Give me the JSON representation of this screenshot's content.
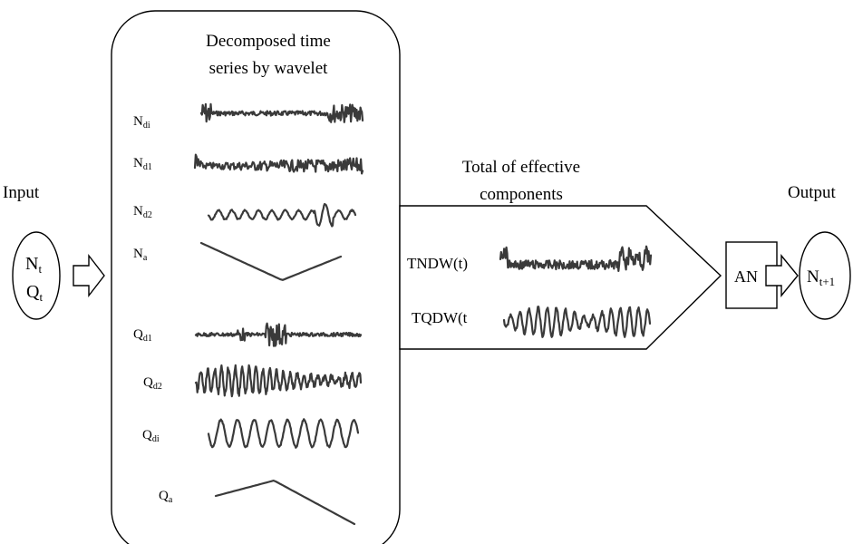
{
  "input": {
    "label": "Input",
    "n": "N",
    "n_sub": "t",
    "q": "Q",
    "q_sub": "t"
  },
  "decomposed": {
    "title_line1": "Decomposed time",
    "title_line2": "series by wavelet",
    "components": [
      {
        "base": "N",
        "sub": "di"
      },
      {
        "base": "N",
        "sub": "d1"
      },
      {
        "base": "N",
        "sub": "d2"
      },
      {
        "base": "N",
        "sub": "a"
      },
      {
        "base": "Q",
        "sub": "d1"
      },
      {
        "base": "Q",
        "sub": "d2"
      },
      {
        "base": "Q",
        "sub": "di"
      },
      {
        "base": "Q",
        "sub": "a"
      }
    ]
  },
  "effective": {
    "title_line1": "Total of effective",
    "title_line2": "components",
    "tndw": "TNDW(t)",
    "tqdw": "TQDW(t"
  },
  "ann": {
    "label": "AN"
  },
  "output": {
    "label": "Output",
    "n": "N",
    "n_sub": "t+1"
  },
  "colors": {
    "stroke": "#000000",
    "signal": "#3a3a3a",
    "background": "#ffffff"
  }
}
